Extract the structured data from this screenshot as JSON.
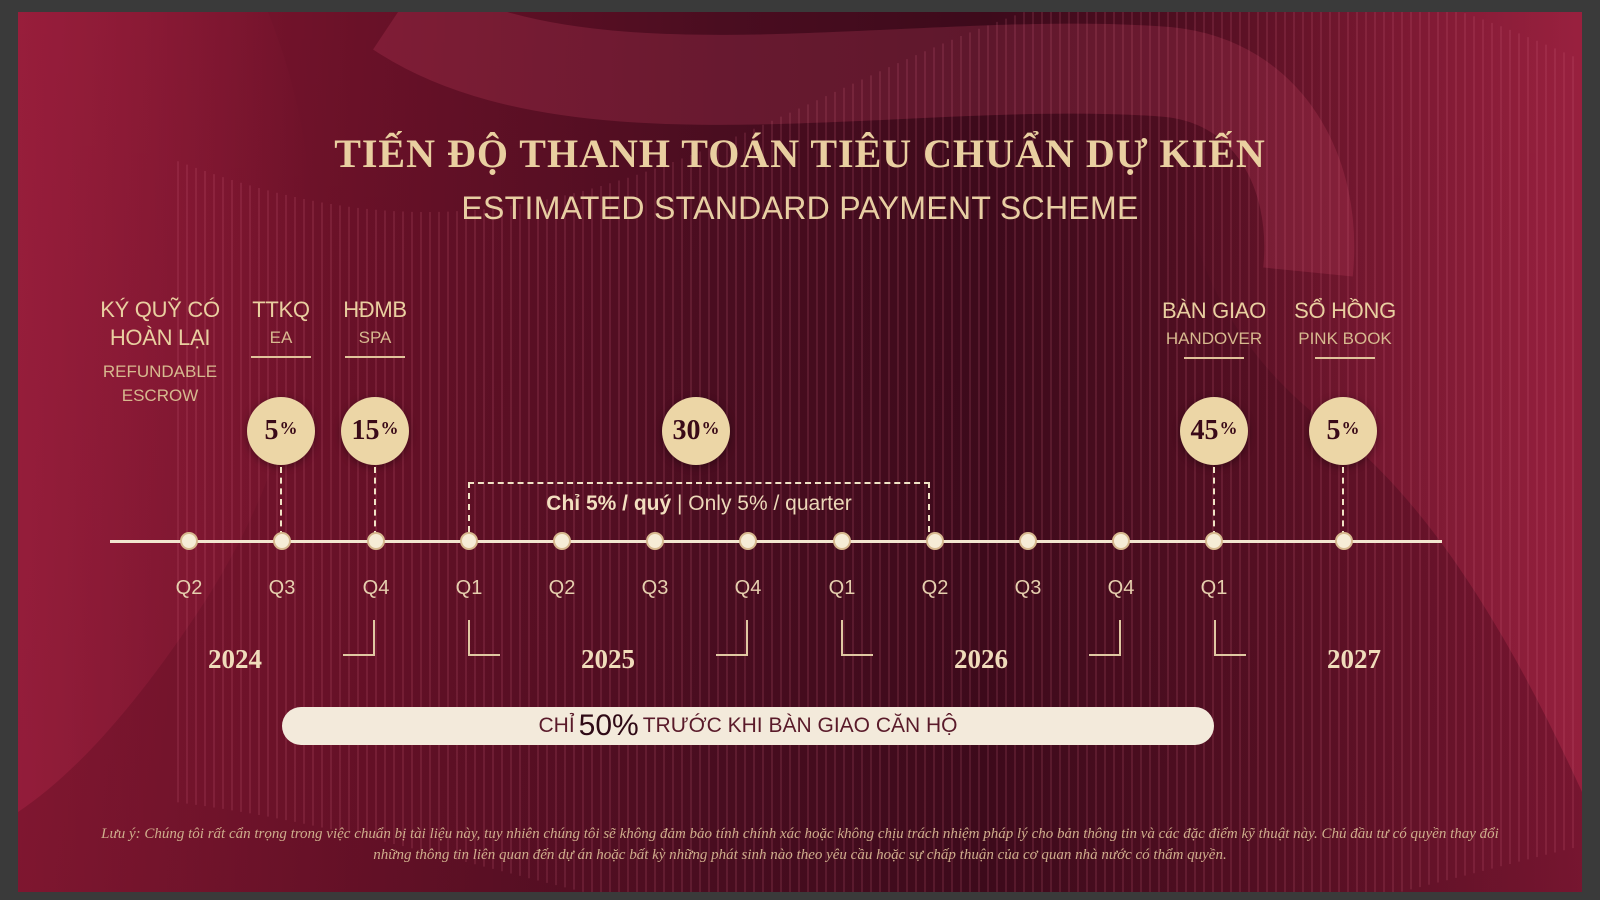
{
  "title": {
    "vi": "TIẾN ĐỘ THANH TOÁN TIÊU CHUẨN DỰ KIẾN",
    "en": "ESTIMATED STANDARD PAYMENT SCHEME"
  },
  "milestones": [
    {
      "vi_l1": "KÝ QUỸ CÓ",
      "vi_l2": "HOÀN LẠI",
      "en_l1": "REFUNDABLE",
      "en_l2": "ESCROW"
    },
    {
      "vi": "TTKQ",
      "en": "EA",
      "pct_num": "5",
      "pct_sym": "%"
    },
    {
      "vi": "HĐMB",
      "en": "SPA",
      "pct_num": "15",
      "pct_sym": "%"
    },
    {
      "pct_num": "30",
      "pct_sym": "%"
    },
    {
      "vi": "BÀN GIAO",
      "en": "HANDOVER",
      "pct_num": "45",
      "pct_sym": "%"
    },
    {
      "vi": "SỔ HỒNG",
      "en": "PINK BOOK",
      "pct_num": "5",
      "pct_sym": "%"
    }
  ],
  "quarter_note": {
    "vi": "Chỉ 5% / quý",
    "sep": " | ",
    "en": "Only 5% / quarter"
  },
  "quarters": [
    "Q2",
    "Q3",
    "Q4",
    "Q1",
    "Q2",
    "Q3",
    "Q4",
    "Q1",
    "Q2",
    "Q3",
    "Q4",
    "Q1"
  ],
  "years": [
    "2024",
    "2025",
    "2026",
    "2027"
  ],
  "pill": {
    "prefix": "CHỈ",
    "big": "50%",
    "suffix": "TRƯỚC KHI BÀN GIAO CĂN HỘ"
  },
  "note": {
    "line1": "Lưu ý: Chúng tôi rất cẩn trọng trong việc chuẩn bị tài liệu này, tuy nhiên chúng tôi sẽ không đảm bảo tính chính xác hoặc không chịu trách nhiệm pháp lý cho bản thông tin và các đặc điểm kỹ thuật này. Chủ đầu tư có quyền thay đổi",
    "line2": "những thông tin liên quan đến dự án hoặc bất kỳ những phát sinh nào theo yêu cầu hoặc sự chấp thuận của cơ quan nhà nước có thẩm quyền."
  },
  "colors": {
    "gold": "#e9cfa0",
    "circle": "#ecd6a6",
    "background_dark": "#3d0a1b",
    "background_red": "#8a1833",
    "pill": "#f3eadb"
  }
}
